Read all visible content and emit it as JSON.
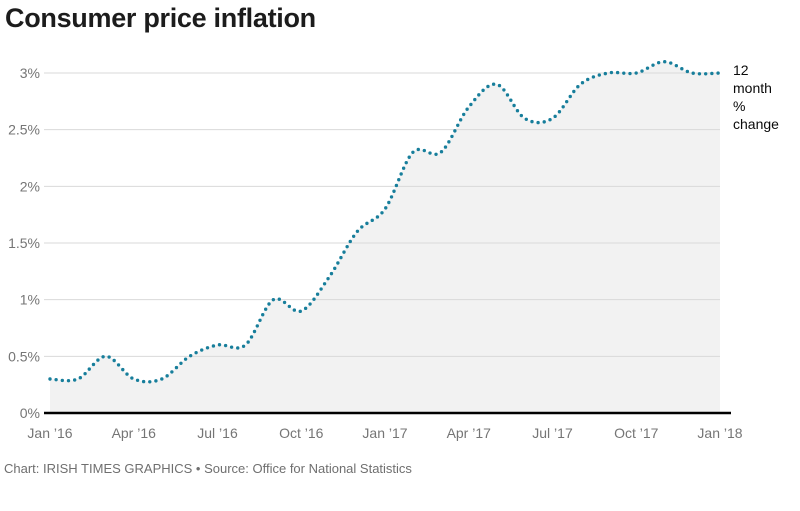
{
  "title": "Consumer price inflation",
  "annotation": "12\nmonth\n%\nchange",
  "footer": "Chart: IRISH TIMES GRAPHICS • Source: Office for National Statistics",
  "colors": {
    "line": "#177e9b",
    "area_fill": "#f2f2f2",
    "gridline": "#d9d9d9",
    "axis": "#000000",
    "tick_text": "#757575",
    "title_text": "#1c1c1c",
    "annotation_text": "#0a0a0a",
    "footer_text": "#6f6f6f"
  },
  "chart_data": {
    "type": "line",
    "line_style": "dotted",
    "title": "Consumer price inflation",
    "series_name": "12 month % change",
    "x": [
      "Jan 2016",
      "Feb 2016",
      "Mar 2016",
      "Apr 2016",
      "May 2016",
      "Jun 2016",
      "Jul 2016",
      "Aug 2016",
      "Sep 2016",
      "Oct 2016",
      "Nov 2016",
      "Dec 2016",
      "Jan 2017",
      "Feb 2017",
      "Mar 2017",
      "Apr 2017",
      "May 2017",
      "Jun 2017",
      "Jul 2017",
      "Aug 2017",
      "Sep 2017",
      "Oct 2017",
      "Nov 2017",
      "Dec 2017",
      "Jan 2018"
    ],
    "values": [
      0.3,
      0.3,
      0.5,
      0.3,
      0.3,
      0.5,
      0.6,
      0.6,
      1.0,
      0.9,
      1.2,
      1.6,
      1.8,
      2.3,
      2.3,
      2.7,
      2.9,
      2.6,
      2.6,
      2.9,
      3.0,
      3.0,
      3.1,
      3.0,
      3.0
    ],
    "ylim": [
      0,
      3
    ],
    "y_ticks": [
      {
        "value": 0,
        "label": "0%"
      },
      {
        "value": 0.5,
        "label": "0.5%"
      },
      {
        "value": 1,
        "label": "1%"
      },
      {
        "value": 1.5,
        "label": "1.5%"
      },
      {
        "value": 2,
        "label": "2%"
      },
      {
        "value": 2.5,
        "label": "2.5%"
      },
      {
        "value": 3,
        "label": "3%"
      }
    ],
    "x_tick_labels": [
      "Jan ’16",
      "Apr ’16",
      "Jul ’16",
      "Oct ’16",
      "Jan ’17",
      "Apr ’17",
      "Jul ’17",
      "Oct ’17",
      "Jan ’18"
    ],
    "x_tick_month_indexes": [
      0,
      3,
      6,
      9,
      12,
      15,
      18,
      21,
      24
    ],
    "area_fill": true,
    "grid": "horizontal",
    "xlabel": "",
    "ylabel": "12 month % change"
  }
}
